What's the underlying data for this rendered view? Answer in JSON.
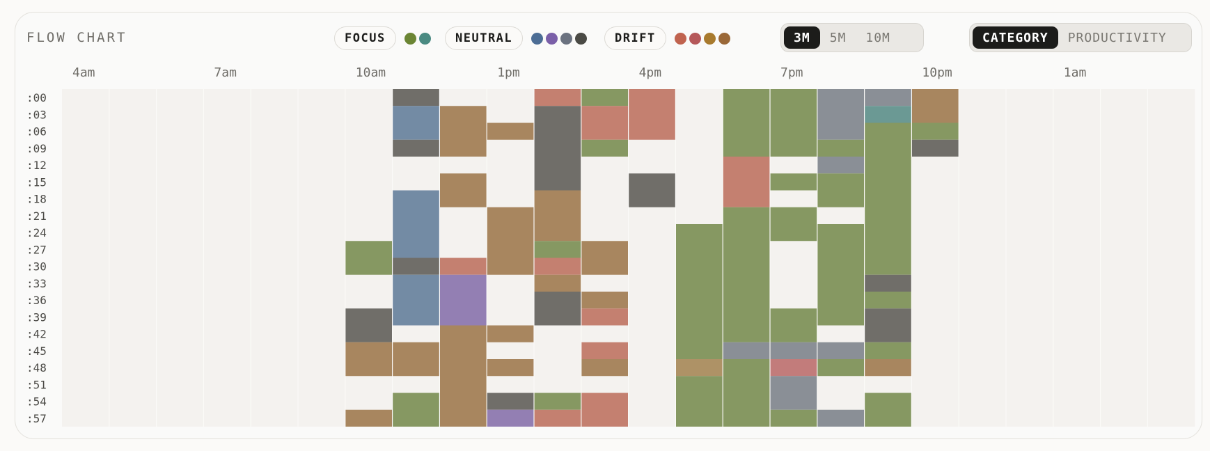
{
  "header": {
    "title": "FLOW CHART"
  },
  "legend": {
    "groups": [
      {
        "label": "FOCUS",
        "colors": [
          "#6b8534",
          "#4a8a82"
        ]
      },
      {
        "label": "NEUTRAL",
        "colors": [
          "#4c6d95",
          "#7a5fa8",
          "#6b7280",
          "#4a4a45"
        ]
      },
      {
        "label": "DRIFT",
        "colors": [
          "#c0634f",
          "#b5585a",
          "#a87a2e",
          "#9a6838"
        ]
      }
    ]
  },
  "interval_toggle": {
    "options": [
      "3M",
      "5M",
      "10M"
    ],
    "selected": "3M"
  },
  "color_mode_toggle": {
    "options": [
      "CATEGORY",
      "PRODUCTIVITY"
    ],
    "selected": "CATEGORY"
  },
  "chart_data": {
    "type": "heatmap",
    "title": "FLOW CHART",
    "x_tick_labels": [
      "4am",
      "7am",
      "10am",
      "1pm",
      "4pm",
      "7pm",
      "10pm",
      "1am"
    ],
    "y_tick_labels": [
      ":00",
      ":03",
      ":06",
      ":09",
      ":12",
      ":15",
      ":18",
      ":21",
      ":24",
      ":27",
      ":30",
      ":33",
      ":36",
      ":39",
      ":42",
      ":45",
      ":48",
      ":51",
      ":54",
      ":57"
    ],
    "columns": [
      "4am",
      "5am",
      "6am",
      "7am",
      "8am",
      "9am",
      "10am",
      "11am",
      "12pm",
      "1pm",
      "2pm",
      "3pm",
      "4pm",
      "5pm",
      "6pm",
      "7pm",
      "8pm",
      "9pm",
      "10pm",
      "11pm",
      "12am",
      "1am",
      "2am",
      "3am"
    ],
    "slot_minutes": 3,
    "categories": {
      "green": "#869862",
      "teal": "#6b9994",
      "blue": "#738ba4",
      "purple": "#937fb3",
      "slate": "#8a8f96",
      "charcoal": "#706e69",
      "coral": "#c48070",
      "rose": "#c27c7b",
      "ochre": "#ae9266",
      "brown": "#a8865f"
    },
    "blocks": [
      {
        "hour": "10am",
        "start": 27,
        "end": 33,
        "category": "green"
      },
      {
        "hour": "10am",
        "start": 39,
        "end": 45,
        "category": "charcoal"
      },
      {
        "hour": "10am",
        "start": 45,
        "end": 51,
        "category": "brown"
      },
      {
        "hour": "10am",
        "start": 57,
        "end": 60,
        "category": "brown"
      },
      {
        "hour": "11am",
        "start": 0,
        "end": 3,
        "category": "charcoal"
      },
      {
        "hour": "11am",
        "start": 3,
        "end": 9,
        "category": "blue"
      },
      {
        "hour": "11am",
        "start": 9,
        "end": 12,
        "category": "charcoal"
      },
      {
        "hour": "11am",
        "start": 18,
        "end": 30,
        "category": "blue"
      },
      {
        "hour": "11am",
        "start": 30,
        "end": 33,
        "category": "charcoal"
      },
      {
        "hour": "11am",
        "start": 33,
        "end": 42,
        "category": "blue"
      },
      {
        "hour": "11am",
        "start": 45,
        "end": 51,
        "category": "brown"
      },
      {
        "hour": "11am",
        "start": 54,
        "end": 60,
        "category": "green"
      },
      {
        "hour": "12pm",
        "start": 3,
        "end": 12,
        "category": "brown"
      },
      {
        "hour": "12pm",
        "start": 15,
        "end": 21,
        "category": "brown"
      },
      {
        "hour": "12pm",
        "start": 30,
        "end": 33,
        "category": "coral"
      },
      {
        "hour": "12pm",
        "start": 33,
        "end": 42,
        "category": "purple"
      },
      {
        "hour": "12pm",
        "start": 42,
        "end": 60,
        "category": "brown"
      },
      {
        "hour": "1pm",
        "start": 6,
        "end": 9,
        "category": "brown"
      },
      {
        "hour": "1pm",
        "start": 21,
        "end": 33,
        "category": "brown"
      },
      {
        "hour": "1pm",
        "start": 42,
        "end": 45,
        "category": "brown"
      },
      {
        "hour": "1pm",
        "start": 48,
        "end": 51,
        "category": "brown"
      },
      {
        "hour": "1pm",
        "start": 54,
        "end": 57,
        "category": "charcoal"
      },
      {
        "hour": "1pm",
        "start": 57,
        "end": 60,
        "category": "purple"
      },
      {
        "hour": "2pm",
        "start": 0,
        "end": 3,
        "category": "coral"
      },
      {
        "hour": "2pm",
        "start": 3,
        "end": 18,
        "category": "charcoal"
      },
      {
        "hour": "2pm",
        "start": 18,
        "end": 27,
        "category": "brown"
      },
      {
        "hour": "2pm",
        "start": 27,
        "end": 30,
        "category": "green"
      },
      {
        "hour": "2pm",
        "start": 30,
        "end": 33,
        "category": "coral"
      },
      {
        "hour": "2pm",
        "start": 33,
        "end": 36,
        "category": "brown"
      },
      {
        "hour": "2pm",
        "start": 36,
        "end": 42,
        "category": "charcoal"
      },
      {
        "hour": "2pm",
        "start": 54,
        "end": 57,
        "category": "green"
      },
      {
        "hour": "2pm",
        "start": 57,
        "end": 60,
        "category": "coral"
      },
      {
        "hour": "3pm",
        "start": 0,
        "end": 3,
        "category": "green"
      },
      {
        "hour": "3pm",
        "start": 3,
        "end": 9,
        "category": "coral"
      },
      {
        "hour": "3pm",
        "start": 9,
        "end": 12,
        "category": "green"
      },
      {
        "hour": "3pm",
        "start": 27,
        "end": 33,
        "category": "brown"
      },
      {
        "hour": "3pm",
        "start": 36,
        "end": 39,
        "category": "brown"
      },
      {
        "hour": "3pm",
        "start": 39,
        "end": 42,
        "category": "coral"
      },
      {
        "hour": "3pm",
        "start": 45,
        "end": 48,
        "category": "coral"
      },
      {
        "hour": "3pm",
        "start": 48,
        "end": 51,
        "category": "brown"
      },
      {
        "hour": "3pm",
        "start": 54,
        "end": 60,
        "category": "coral"
      },
      {
        "hour": "4pm",
        "start": 0,
        "end": 9,
        "category": "coral"
      },
      {
        "hour": "4pm",
        "start": 15,
        "end": 21,
        "category": "charcoal"
      },
      {
        "hour": "5pm",
        "start": 24,
        "end": 48,
        "category": "green"
      },
      {
        "hour": "5pm",
        "start": 48,
        "end": 51,
        "category": "ochre"
      },
      {
        "hour": "5pm",
        "start": 51,
        "end": 60,
        "category": "green"
      },
      {
        "hour": "6pm",
        "start": 0,
        "end": 12,
        "category": "green"
      },
      {
        "hour": "6pm",
        "start": 12,
        "end": 21,
        "category": "coral"
      },
      {
        "hour": "6pm",
        "start": 21,
        "end": 45,
        "category": "green"
      },
      {
        "hour": "6pm",
        "start": 45,
        "end": 48,
        "category": "slate"
      },
      {
        "hour": "6pm",
        "start": 48,
        "end": 60,
        "category": "green"
      },
      {
        "hour": "7pm",
        "start": 0,
        "end": 12,
        "category": "green"
      },
      {
        "hour": "7pm",
        "start": 15,
        "end": 18,
        "category": "green"
      },
      {
        "hour": "7pm",
        "start": 21,
        "end": 27,
        "category": "green"
      },
      {
        "hour": "7pm",
        "start": 39,
        "end": 45,
        "category": "green"
      },
      {
        "hour": "7pm",
        "start": 45,
        "end": 48,
        "category": "slate"
      },
      {
        "hour": "7pm",
        "start": 48,
        "end": 51,
        "category": "rose"
      },
      {
        "hour": "7pm",
        "start": 51,
        "end": 57,
        "category": "slate"
      },
      {
        "hour": "7pm",
        "start": 57,
        "end": 60,
        "category": "green"
      },
      {
        "hour": "8pm",
        "start": 0,
        "end": 9,
        "category": "slate"
      },
      {
        "hour": "8pm",
        "start": 9,
        "end": 12,
        "category": "green"
      },
      {
        "hour": "8pm",
        "start": 12,
        "end": 15,
        "category": "slate"
      },
      {
        "hour": "8pm",
        "start": 15,
        "end": 21,
        "category": "green"
      },
      {
        "hour": "8pm",
        "start": 24,
        "end": 42,
        "category": "green"
      },
      {
        "hour": "8pm",
        "start": 45,
        "end": 48,
        "category": "slate"
      },
      {
        "hour": "8pm",
        "start": 48,
        "end": 51,
        "category": "green"
      },
      {
        "hour": "8pm",
        "start": 57,
        "end": 60,
        "category": "slate"
      },
      {
        "hour": "9pm",
        "start": 0,
        "end": 3,
        "category": "slate"
      },
      {
        "hour": "9pm",
        "start": 3,
        "end": 6,
        "category": "teal"
      },
      {
        "hour": "9pm",
        "start": 6,
        "end": 33,
        "category": "green"
      },
      {
        "hour": "9pm",
        "start": 33,
        "end": 36,
        "category": "charcoal"
      },
      {
        "hour": "9pm",
        "start": 36,
        "end": 39,
        "category": "green"
      },
      {
        "hour": "9pm",
        "start": 39,
        "end": 45,
        "category": "charcoal"
      },
      {
        "hour": "9pm",
        "start": 45,
        "end": 48,
        "category": "green"
      },
      {
        "hour": "9pm",
        "start": 48,
        "end": 51,
        "category": "brown"
      },
      {
        "hour": "9pm",
        "start": 54,
        "end": 60,
        "category": "green"
      },
      {
        "hour": "10pm",
        "start": 0,
        "end": 6,
        "category": "brown"
      },
      {
        "hour": "10pm",
        "start": 6,
        "end": 9,
        "category": "green"
      },
      {
        "hour": "10pm",
        "start": 9,
        "end": 12,
        "category": "charcoal"
      }
    ]
  }
}
